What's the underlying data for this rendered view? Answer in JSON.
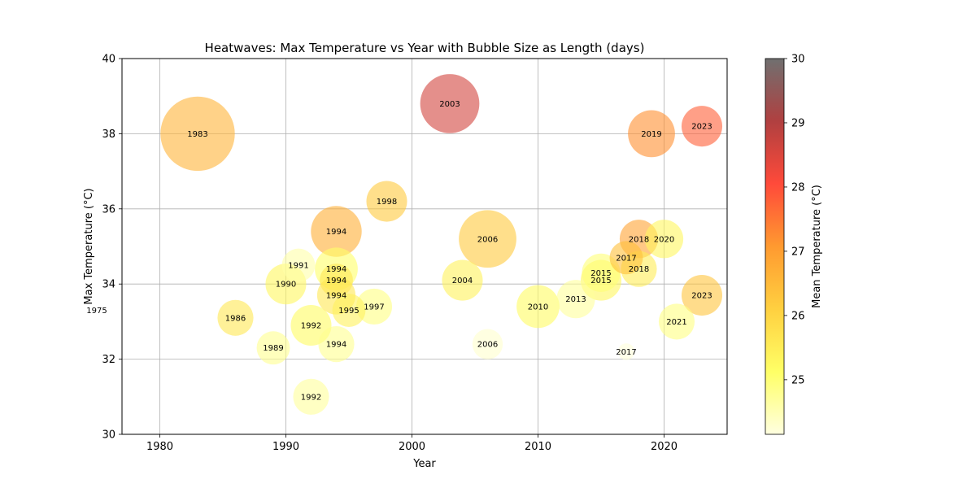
{
  "chart_data": {
    "type": "scatter",
    "title": "Heatwaves: Max Temperature vs Year with Bubble Size as Length (days)",
    "xlabel": "Year",
    "ylabel": "Max Temperature (°C)",
    "xlim": [
      1977,
      2025
    ],
    "ylim": [
      30,
      40
    ],
    "xticks": [
      1980,
      1990,
      2000,
      2010,
      2020
    ],
    "yticks": [
      30,
      32,
      34,
      36,
      38,
      40
    ],
    "grid": true,
    "colorbar": {
      "label": "Mean Temperature (°C)",
      "range": [
        24.15,
        30
      ],
      "ticks": [
        25,
        26,
        27,
        28,
        29,
        30
      ],
      "colormap": [
        "#ffffe0",
        "#ffff66",
        "#ffd040",
        "#ff9a30",
        "#ff4a3a",
        "#b04040",
        "#707070"
      ]
    },
    "points": [
      {
        "label": "1975",
        "year": 1975,
        "max_temp": 33.3,
        "mean_temp": 24.3,
        "length_days": 4
      },
      {
        "label": "1983",
        "year": 1983,
        "max_temp": 38.0,
        "mean_temp": 26.6,
        "length_days": 60
      },
      {
        "label": "1986",
        "year": 1986,
        "max_temp": 33.1,
        "mean_temp": 25.6,
        "length_days": 14
      },
      {
        "label": "1989",
        "year": 1989,
        "max_temp": 32.3,
        "mean_temp": 24.8,
        "length_days": 12
      },
      {
        "label": "1990",
        "year": 1990,
        "max_temp": 34.0,
        "mean_temp": 25.3,
        "length_days": 18
      },
      {
        "label": "1991",
        "year": 1991,
        "max_temp": 34.5,
        "mean_temp": 24.6,
        "length_days": 12
      },
      {
        "label": "1992",
        "year": 1992,
        "max_temp": 32.9,
        "mean_temp": 25.2,
        "length_days": 18
      },
      {
        "label": "1992",
        "year": 1992,
        "max_temp": 31.0,
        "mean_temp": 24.7,
        "length_days": 14
      },
      {
        "label": "1994",
        "year": 1994,
        "max_temp": 35.4,
        "mean_temp": 26.7,
        "length_days": 28
      },
      {
        "label": "1994",
        "year": 1994,
        "max_temp": 34.4,
        "mean_temp": 25.1,
        "length_days": 20
      },
      {
        "label": "1994",
        "year": 1994,
        "max_temp": 34.1,
        "mean_temp": 25.6,
        "length_days": 12
      },
      {
        "label": "1994",
        "year": 1994,
        "max_temp": 33.7,
        "mean_temp": 25.6,
        "length_days": 16
      },
      {
        "label": "1994",
        "year": 1994,
        "max_temp": 32.4,
        "mean_temp": 24.8,
        "length_days": 14
      },
      {
        "label": "1995",
        "year": 1995,
        "max_temp": 33.3,
        "mean_temp": 25.4,
        "length_days": 12
      },
      {
        "label": "1997",
        "year": 1997,
        "max_temp": 33.4,
        "mean_temp": 24.9,
        "length_days": 14
      },
      {
        "label": "1998",
        "year": 1998,
        "max_temp": 36.2,
        "mean_temp": 26.2,
        "length_days": 18
      },
      {
        "label": "2003",
        "year": 2003,
        "max_temp": 38.8,
        "mean_temp": 28.6,
        "length_days": 38
      },
      {
        "label": "2004",
        "year": 2004,
        "max_temp": 34.1,
        "mean_temp": 25.4,
        "length_days": 18
      },
      {
        "label": "2006",
        "year": 2006,
        "max_temp": 35.2,
        "mean_temp": 26.2,
        "length_days": 36
      },
      {
        "label": "2006",
        "year": 2006,
        "max_temp": 32.4,
        "mean_temp": 24.3,
        "length_days": 10
      },
      {
        "label": "2010",
        "year": 2010,
        "max_temp": 33.4,
        "mean_temp": 25.2,
        "length_days": 20
      },
      {
        "label": "2013",
        "year": 2013,
        "max_temp": 33.6,
        "mean_temp": 24.7,
        "length_days": 16
      },
      {
        "label": "2015",
        "year": 2015,
        "max_temp": 34.3,
        "mean_temp": 25.0,
        "length_days": 16
      },
      {
        "label": "2015",
        "year": 2015,
        "max_temp": 34.1,
        "mean_temp": 25.3,
        "length_days": 18
      },
      {
        "label": "2017",
        "year": 2017,
        "max_temp": 34.7,
        "mean_temp": 26.4,
        "length_days": 12
      },
      {
        "label": "2017",
        "year": 2017,
        "max_temp": 32.2,
        "mean_temp": 24.2,
        "length_days": 3
      },
      {
        "label": "2018",
        "year": 2018,
        "max_temp": 35.2,
        "mean_temp": 26.9,
        "length_days": 16
      },
      {
        "label": "2018",
        "year": 2018,
        "max_temp": 34.4,
        "mean_temp": 25.5,
        "length_days": 14
      },
      {
        "label": "2019",
        "year": 2019,
        "max_temp": 38.0,
        "mean_temp": 27.2,
        "length_days": 24
      },
      {
        "label": "2020",
        "year": 2020,
        "max_temp": 35.2,
        "mean_temp": 25.3,
        "length_days": 16
      },
      {
        "label": "2021",
        "year": 2021,
        "max_temp": 33.0,
        "mean_temp": 24.9,
        "length_days": 14
      },
      {
        "label": "2023",
        "year": 2023,
        "max_temp": 38.2,
        "mean_temp": 27.8,
        "length_days": 18
      },
      {
        "label": "2023",
        "year": 2023,
        "max_temp": 33.7,
        "mean_temp": 26.3,
        "length_days": 18
      }
    ]
  }
}
